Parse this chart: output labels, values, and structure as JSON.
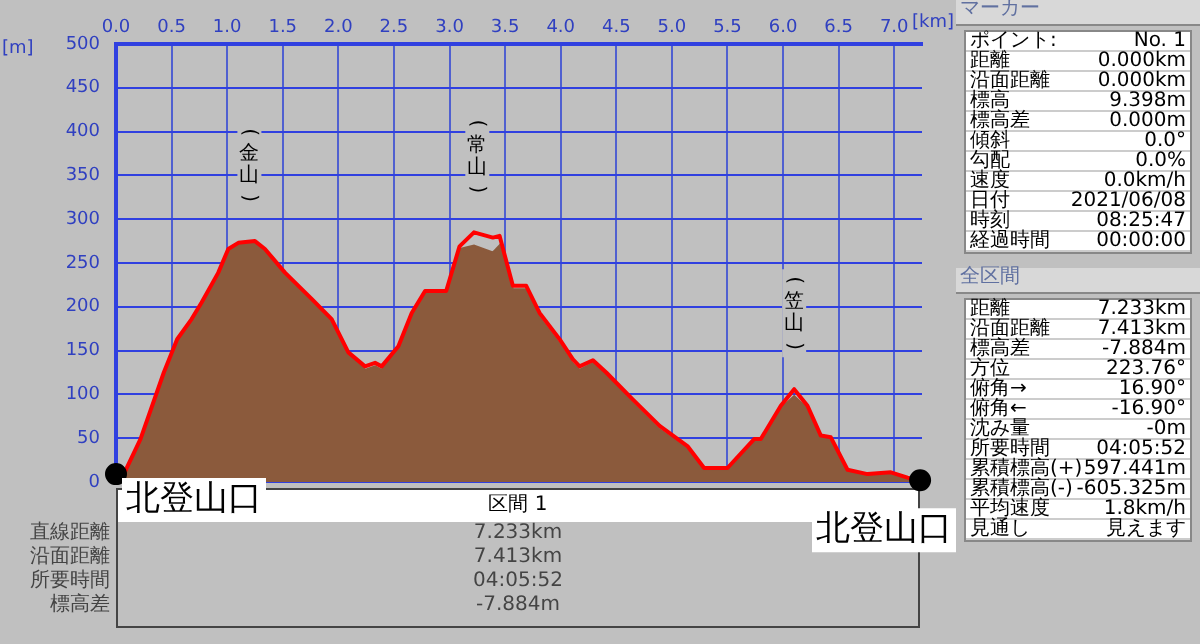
{
  "chart_data": {
    "type": "area",
    "xlabel": "[km]",
    "ylabel": "[m]",
    "x": [
      0,
      0.07,
      0.22,
      0.43,
      0.55,
      0.68,
      0.77,
      0.92,
      1.01,
      1.1,
      1.25,
      1.34,
      1.52,
      1.76,
      1.94,
      2.09,
      2.24,
      2.33,
      2.39,
      2.54,
      2.66,
      2.78,
      2.97,
      3.09,
      3.22,
      3.39,
      3.45,
      3.57,
      3.69,
      3.81,
      3.99,
      4.11,
      4.17,
      4.29,
      4.41,
      4.65,
      4.89,
      5.14,
      5.29,
      5.5,
      5.74,
      5.8,
      5.98,
      6.1,
      6.22,
      6.34,
      6.43,
      6.58,
      6.76,
      6.97,
      7.12,
      7.233
    ],
    "series": [
      {
        "color": "#8b5a3c",
        "values": [
          9,
          9,
          49,
          125,
          163,
          186,
          205,
          239,
          266,
          273,
          275,
          266,
          239,
          209,
          186,
          148,
          128,
          132,
          128,
          155,
          193,
          218,
          218,
          266,
          270,
          262,
          270,
          220,
          220,
          188,
          158,
          135,
          128,
          136,
          122,
          90,
          60,
          38,
          14,
          14,
          46,
          46,
          84,
          98,
          84,
          50,
          48,
          12,
          7,
          9,
          4,
          1
        ]
      },
      {
        "type": "line",
        "color": "#ff0000",
        "values": [
          9,
          9,
          49,
          125,
          163,
          186,
          205,
          239,
          266,
          273,
          275,
          266,
          239,
          209,
          186,
          148,
          132,
          136,
          132,
          155,
          193,
          218,
          218,
          269,
          285,
          279,
          281,
          224,
          224,
          193,
          163,
          140,
          132,
          139,
          125,
          94,
          64,
          41,
          16,
          16,
          49,
          49,
          87,
          106,
          87,
          53,
          51,
          14,
          9,
          11,
          5,
          1
        ]
      },
      {
        "type": "scatter",
        "color": "#000000",
        "marker": "circle",
        "x": [
          0,
          7.233
        ],
        "values": [
          9,
          2
        ]
      }
    ],
    "xlim": [
      0,
      7.25
    ],
    "xticks": [
      {
        "value": 0,
        "label": "0.0"
      },
      0.5,
      {
        "value": 1,
        "label": "1.0"
      },
      1.5,
      {
        "value": 2,
        "label": "2.0"
      },
      2.5,
      {
        "value": 3,
        "label": "3.0"
      },
      3.5,
      {
        "value": 4,
        "label": "4.0"
      },
      4.5,
      {
        "value": 5,
        "label": "5.0"
      },
      5.5,
      {
        "value": 6,
        "label": "6.0"
      },
      6.5,
      {
        "value": 7,
        "label": "7.0"
      }
    ],
    "ylim": [
      0,
      500
    ],
    "yticks": [
      0,
      50,
      100,
      150,
      200,
      250,
      300,
      350,
      400,
      450,
      500
    ],
    "grid": true,
    "legend": false,
    "annotations": [
      {
        "text": "(金山)",
        "x": 1.2,
        "y": 275
      },
      {
        "text": "(常山)",
        "x": 3.25,
        "y": 285
      },
      {
        "text": "(笠山)",
        "x": 6.1,
        "y": 106
      },
      {
        "text": "北登山口",
        "x": 0,
        "y": 9
      },
      {
        "text": "北登山口",
        "x": 7.233,
        "y": 2
      },
      "マーカー",
      "ポイント:",
      "No. 1",
      "距離",
      "0.000km",
      "沿面距離",
      "0.000km",
      "標高",
      "9.398m",
      "標高差",
      "0.000m",
      "傾斜",
      "0.0°",
      "勾配",
      "0.0%",
      "速度",
      "0.0km/h",
      "日付",
      "2021/06/08",
      "時刻",
      "08:25:47",
      "経過時間",
      "00:00:00",
      "全区間",
      "距離",
      "7.233km",
      "沿面距離",
      "7.413km",
      "標高差",
      "-7.884m",
      "方位",
      "223.76°",
      "俯角→",
      "16.90°",
      "俯角←",
      "-16.90°",
      "沈み量",
      "-0m",
      "所要時間",
      "04:05:52",
      "累積標高(+)",
      "597.441m",
      "累積標高(-)",
      "-605.325m",
      "平均速度",
      "1.8km/h",
      "見通し",
      "見えます",
      "区間 1",
      "直線距離",
      "7.233km",
      "沿面距離",
      "7.413km",
      "所要時間",
      "04:05:52",
      "標高差",
      "-7.884m"
    ]
  }
}
